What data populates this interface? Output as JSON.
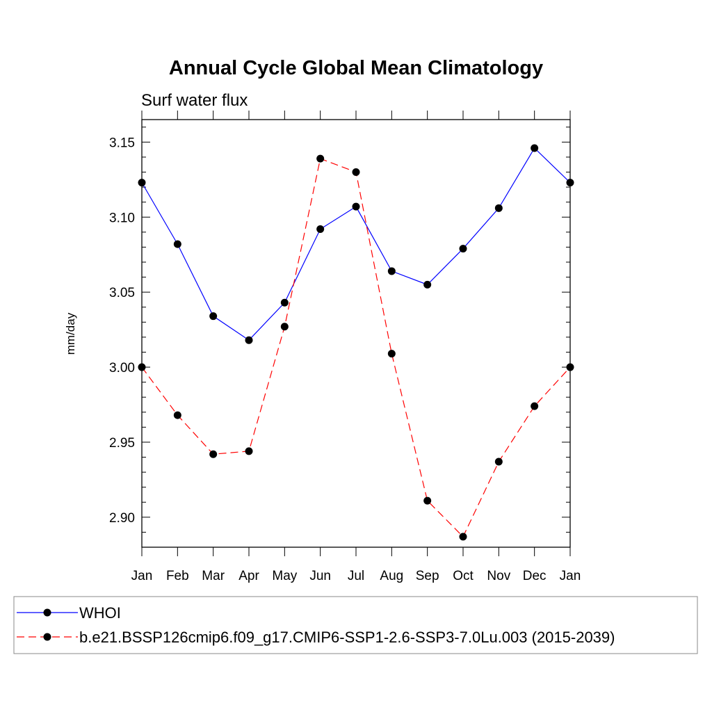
{
  "chart_data": {
    "type": "line",
    "title": "Annual Cycle Global Mean Climatology",
    "subtitle": "Surf water flux",
    "ylabel": "mm/day",
    "xlabel": "",
    "categories": [
      "Jan",
      "Feb",
      "Mar",
      "Apr",
      "May",
      "Jun",
      "Jul",
      "Aug",
      "Sep",
      "Oct",
      "Nov",
      "Dec",
      "Jan"
    ],
    "ylim": [
      2.88,
      3.165
    ],
    "yticks": [
      "3.15",
      "3.10",
      "3.05",
      "3.00",
      "2.95",
      "2.90"
    ],
    "grid": false,
    "legend_position": "bottom",
    "series": [
      {
        "name": "WHOI",
        "color": "#0000ff",
        "dash": "solid",
        "marker": "filled-circle",
        "values": [
          3.123,
          3.082,
          3.034,
          3.018,
          3.043,
          3.092,
          3.107,
          3.064,
          3.055,
          3.079,
          3.106,
          3.146,
          3.123
        ]
      },
      {
        "name": "b.e21.BSSP126cmip6.f09_g17.CMIP6-SSP1-2.6-SSP3-7.0Lu.003 (2015-2039)",
        "color": "#ff0000",
        "dash": "dashed",
        "marker": "filled-circle",
        "values": [
          3.0,
          2.968,
          2.942,
          2.944,
          3.027,
          3.139,
          3.13,
          3.009,
          2.911,
          2.887,
          2.937,
          2.974,
          3.0
        ]
      }
    ]
  }
}
